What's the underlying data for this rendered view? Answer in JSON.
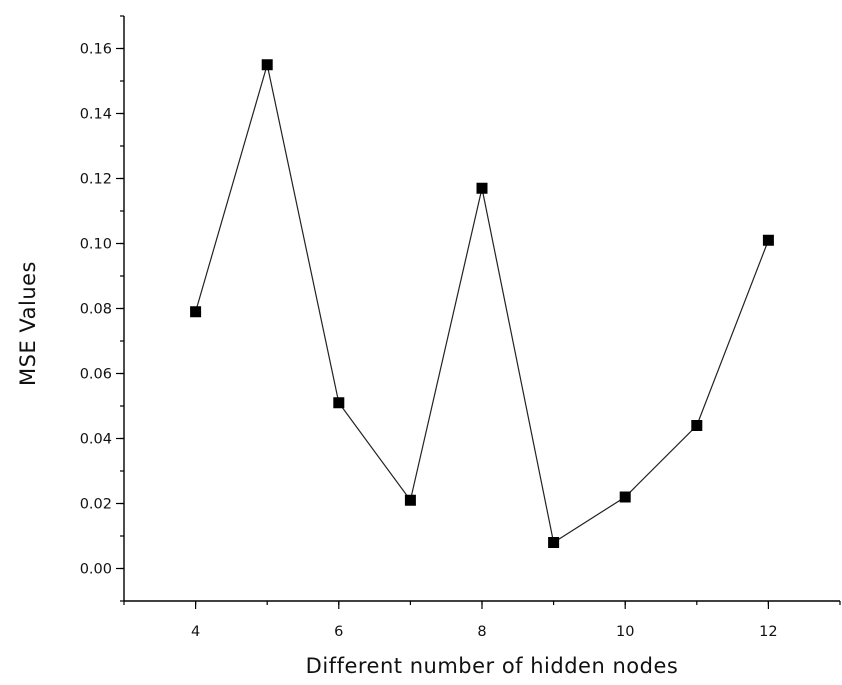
{
  "chart_data": {
    "type": "line",
    "title": "",
    "xlabel": "Different number of hidden nodes",
    "ylabel": "MSE Values",
    "x_ticks": [
      "4",
      "6",
      "8",
      "10",
      "12"
    ],
    "y_ticks": [
      "0.00",
      "0.02",
      "0.04",
      "0.06",
      "0.08",
      "0.10",
      "0.12",
      "0.14",
      "0.16"
    ],
    "xlim": [
      3,
      13
    ],
    "ylim": [
      -0.01,
      0.17
    ],
    "grid": false,
    "legend": "none",
    "marker": "square",
    "series": [
      {
        "x": [
          4,
          5,
          6,
          7,
          8,
          9,
          10,
          11,
          12
        ],
        "values": [
          0.079,
          0.155,
          0.051,
          0.021,
          0.117,
          0.008,
          0.022,
          0.044,
          0.101
        ]
      }
    ]
  }
}
